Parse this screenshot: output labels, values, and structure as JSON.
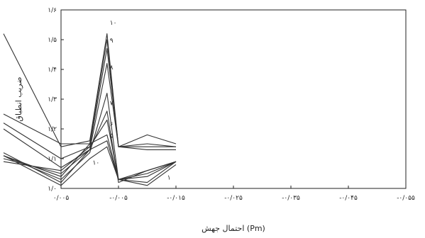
{
  "chart_data": {
    "type": "line",
    "xlabel": "احتمال جهش (Pm)",
    "ylabel": "ضريب انطباق",
    "x": [
      -0.015,
      -0.01,
      -0.005,
      -0.003,
      0,
      0.005,
      0.015
    ],
    "x_ticks": [
      -0.055,
      -0.045,
      -0.035,
      -0.025,
      -0.015,
      -0.005,
      0.005
    ],
    "x_tick_labels": [
      "-۰/۰۵۵",
      "-۰/۰۴۵",
      "-۰/۰۳۵",
      "-۰/۰۲۵",
      "-۰/۰۱۵",
      "-۰/۰۰۵",
      "۰/۰۰۵"
    ],
    "xlim": [
      -0.055,
      0.005
    ],
    "y_ticks": [
      1.0,
      1.1,
      1.2,
      1.3,
      1.4,
      1.5,
      1.6
    ],
    "y_tick_labels": [
      "۱/۰",
      "۱/۱",
      "۱/۲",
      "۱/۳",
      "۱/۴",
      "۱/۵",
      "۱/۶"
    ],
    "ylim": [
      1.0,
      1.6
    ],
    "grid": false,
    "legend": "none",
    "series": [
      {
        "values": [
          1.15,
          1.18,
          1.14,
          1.52,
          1.16,
          1.14,
          1.52
        ]
      },
      {
        "values": [
          1.14,
          1.15,
          1.14,
          1.5,
          1.15,
          1.15,
          1.25
        ]
      },
      {
        "values": [
          1.14,
          1.14,
          1.14,
          1.47,
          1.14,
          1.1,
          1.22
        ]
      },
      {
        "values": [
          1.13,
          1.13,
          1.14,
          1.42,
          1.13,
          1.07,
          1.2
        ]
      },
      {
        "values": [
          1.09,
          1.06,
          1.03,
          1.32,
          1.12,
          1.03,
          1.11
        ]
      },
      {
        "values": [
          1.09,
          1.06,
          1.02,
          1.26,
          1.13,
          1.05,
          1.1
        ]
      },
      {
        "values": [
          1.09,
          1.05,
          1.03,
          1.23,
          1.14,
          1.06,
          1.09
        ]
      },
      {
        "values": [
          1.09,
          1.04,
          1.03,
          1.18,
          1.15,
          1.04,
          1.11
        ]
      },
      {
        "values": [
          1.09,
          1.02,
          1.03,
          1.16,
          1.13,
          1.02,
          1.12
        ]
      },
      {
        "values": [
          1.08,
          1.01,
          1.03,
          1.14,
          1.1,
          1.01,
          1.11
        ]
      }
    ],
    "annotations": [
      {
        "text": "۱۰",
        "x": -0.003,
        "y": 1.55
      },
      {
        "text": "۹",
        "x": -0.003,
        "y": 1.49
      },
      {
        "text": "۸",
        "x": -0.003,
        "y": 1.4
      },
      {
        "text": "۷",
        "x": -0.003,
        "y": 1.28
      },
      {
        "text": "۶",
        "x": -0.003,
        "y": 1.21
      },
      {
        "text": "۵",
        "x": -0.003,
        "y": 1.17
      },
      {
        "text": "۱۰",
        "x": 0.0,
        "y": 1.08
      },
      {
        "text": "۱",
        "x": -0.013,
        "y": 1.03
      }
    ]
  }
}
